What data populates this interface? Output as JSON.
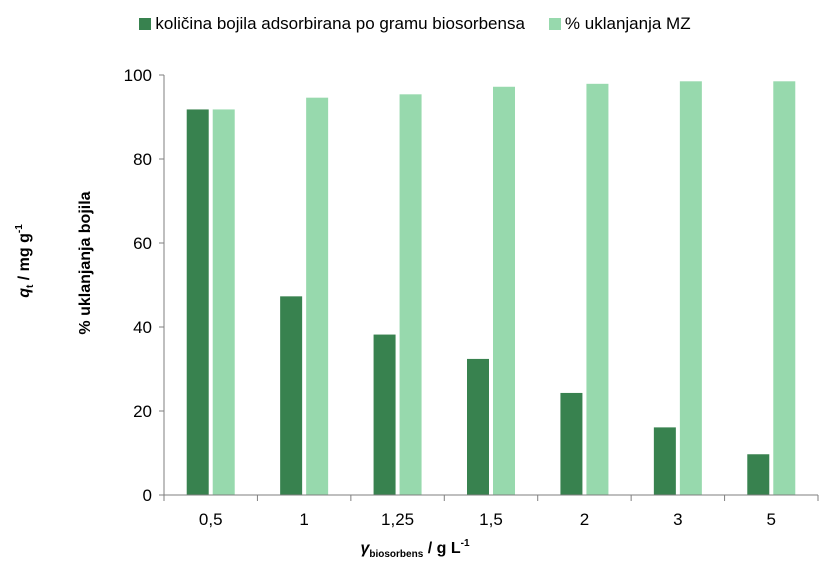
{
  "colors": {
    "series1": "#38824f",
    "series2": "#97d9ad",
    "axis": "#7f7f7f"
  },
  "legend": {
    "series1_label": "količina bojila adsorbirana po gramu biosorbensa",
    "series2_label": "% uklanjanja MZ"
  },
  "axes": {
    "y1_label": {
      "symbol": "q",
      "sub": "t",
      "unit": "/ mg g",
      "sup": "-1"
    },
    "y2_label": "% uklanjanja bojila",
    "x_label": {
      "symbol": "γ",
      "sub": "biosorbens",
      "unit": "/ g L",
      "sup": "-1"
    }
  },
  "chart_data": {
    "type": "bar",
    "categories": [
      "0,5",
      "1",
      "1,25",
      "1,5",
      "2",
      "3",
      "5"
    ],
    "series": [
      {
        "name": "količina bojila adsorbirana po gramu biosorbensa",
        "values": [
          91.8,
          47.3,
          38.2,
          32.4,
          24.3,
          16.1,
          9.7
        ]
      },
      {
        "name": "% uklanjanja MZ",
        "values": [
          91.8,
          94.6,
          95.4,
          97.2,
          97.9,
          98.5,
          98.5
        ]
      }
    ],
    "ylim": [
      0,
      100
    ],
    "yticks": [
      "0",
      "20",
      "40",
      "60",
      "80",
      "100"
    ],
    "ytick_values": [
      0,
      20,
      40,
      60,
      80,
      100
    ],
    "grid": false,
    "legend_position": "top"
  }
}
